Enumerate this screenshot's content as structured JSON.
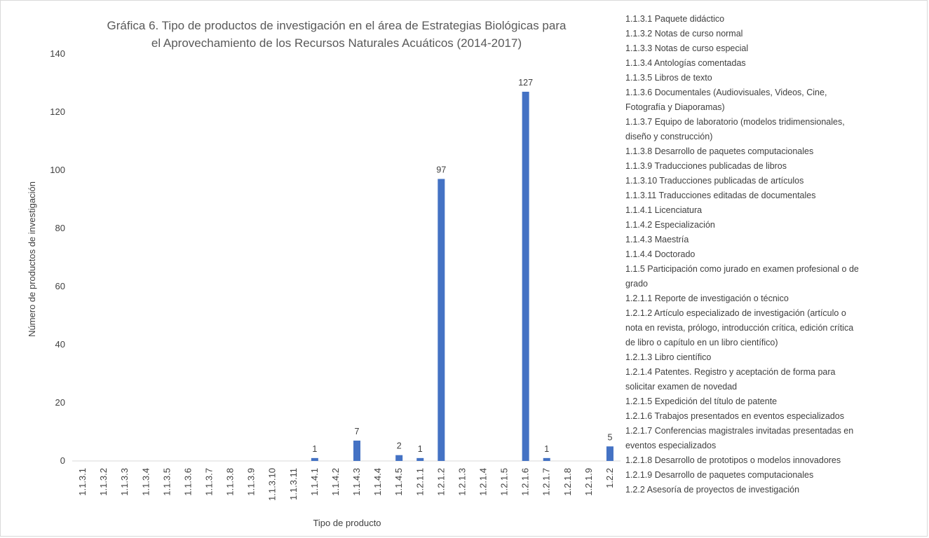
{
  "chart_data": {
    "type": "bar",
    "title_lines": [
      "Gráfica 6. Tipo de productos de investigación en el área de Estrategias Biológicas para",
      "el Aprovechamiento de los Recursos Naturales Acuáticos (2014-2017)"
    ],
    "xlabel": "Tipo de producto",
    "ylabel": "Número de productos de investigación",
    "ylim": [
      0,
      140
    ],
    "yticks": [
      0,
      20,
      40,
      60,
      80,
      100,
      120,
      140
    ],
    "grid": false,
    "legend_position": "right",
    "bar_color": "#4472c4",
    "categories": [
      "1.1.3.1",
      "1.1.3.2",
      "1.1.3.3",
      "1.1.3.4",
      "1.1.3.5",
      "1.1.3.6",
      "1.1.3.7",
      "1.1.3.8",
      "1.1.3.9",
      "1.1.3.10",
      "1.1.3.11",
      "1.1.4.1",
      "1.1.4.2",
      "1.1.4.3",
      "1.1.4.4",
      "1.1.4.5",
      "1.2.1.1",
      "1.2.1.2",
      "1.2.1.3",
      "1.2.1.4",
      "1.2.1.5",
      "1.2.1.6",
      "1.2.1.7",
      "1.2.1.8",
      "1.2.1.9",
      "1.2.2"
    ],
    "values": [
      0,
      0,
      0,
      0,
      0,
      0,
      0,
      0,
      0,
      0,
      0,
      1,
      0,
      7,
      0,
      2,
      1,
      97,
      0,
      0,
      0,
      127,
      1,
      0,
      0,
      5
    ],
    "legend_entries": [
      "1.1.3.1 Paquete didáctico",
      "1.1.3.2 Notas de curso normal",
      "1.1.3.3 Notas de curso especial",
      "1.1.3.4 Antologías comentadas",
      "1.1.3.5 Libros de texto",
      "1.1.3.6 Documentales (Audiovisuales, Videos, Cine,",
      "Fotografía y Diaporamas)",
      "1.1.3.7 Equipo de laboratorio (modelos tridimensionales,",
      "diseño y construcción)",
      "1.1.3.8 Desarrollo de paquetes computacionales",
      "1.1.3.9 Traducciones publicadas de libros",
      "1.1.3.10 Traducciones publicadas de artículos",
      "1.1.3.11 Traducciones editadas de documentales",
      "1.1.4.1 Licenciatura",
      "1.1.4.2 Especialización",
      "1.1.4.3 Maestría",
      "1.1.4.4 Doctorado",
      "1.1.5 Participación como jurado en examen profesional o de",
      "grado",
      "1.2.1.1 Reporte de investigación o técnico",
      "1.2.1.2 Artículo especializado de investigación (artículo o",
      "nota en revista, prólogo, introducción crítica, edición crítica",
      "de libro o capítulo en un libro científico)",
      "1.2.1.3 Libro científico",
      "1.2.1.4 Patentes. Registro y aceptación de forma para",
      "solicitar examen de novedad",
      "1.2.1.5 Expedición del título de patente",
      "1.2.1.6 Trabajos presentados en eventos especializados",
      "1.2.1.7 Conferencias magistrales invitadas presentadas en",
      "eventos especializados",
      "1.2.1.8 Desarrollo de prototipos o modelos innovadores",
      "1.2.1.9 Desarrollo de paquetes computacionales",
      "1.2.2 Asesoría de proyectos de investigación"
    ]
  }
}
